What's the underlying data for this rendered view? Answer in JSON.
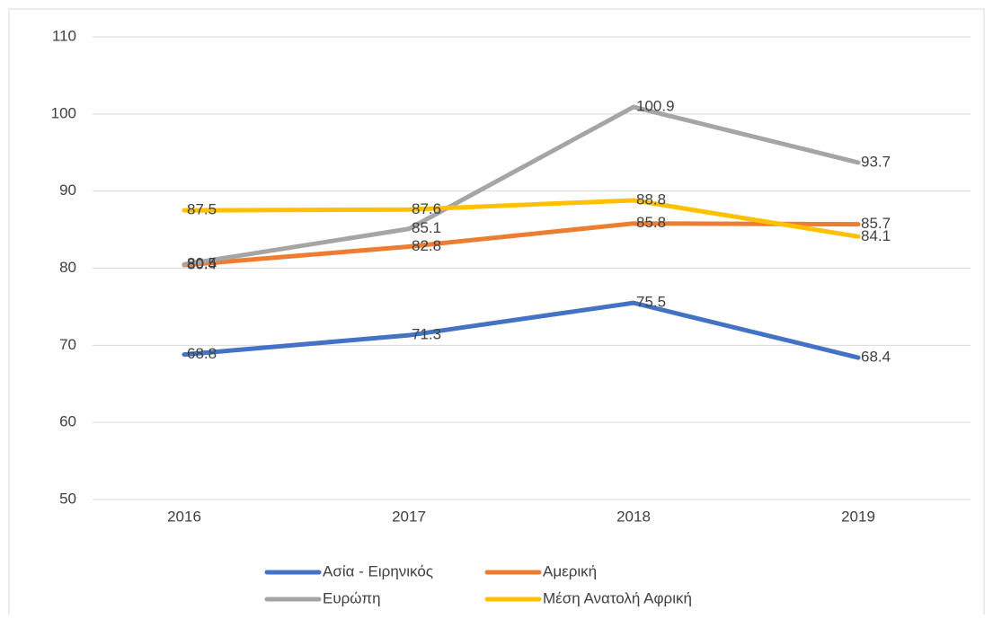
{
  "chart_data": {
    "type": "line",
    "categories": [
      "2016",
      "2017",
      "2018",
      "2019"
    ],
    "series": [
      {
        "name": "Ασία - Ειρηνικός",
        "color": "#4472c4",
        "values": [
          68.8,
          71.3,
          75.5,
          68.4
        ]
      },
      {
        "name": "Αμερική",
        "color": "#ed7d31",
        "values": [
          80.4,
          82.8,
          85.8,
          85.7
        ]
      },
      {
        "name": "Ευρώπη",
        "color": "#a5a5a5",
        "values": [
          80.5,
          85.1,
          100.9,
          93.7
        ]
      },
      {
        "name": "Μέση Ανατολή  Αφρική",
        "color": "#ffc000",
        "values": [
          87.5,
          87.6,
          88.8,
          84.1
        ]
      }
    ],
    "ylim": [
      50,
      110
    ],
    "yticks": [
      50,
      60,
      70,
      80,
      90,
      100,
      110
    ],
    "grid": true,
    "legend": "bottom"
  }
}
